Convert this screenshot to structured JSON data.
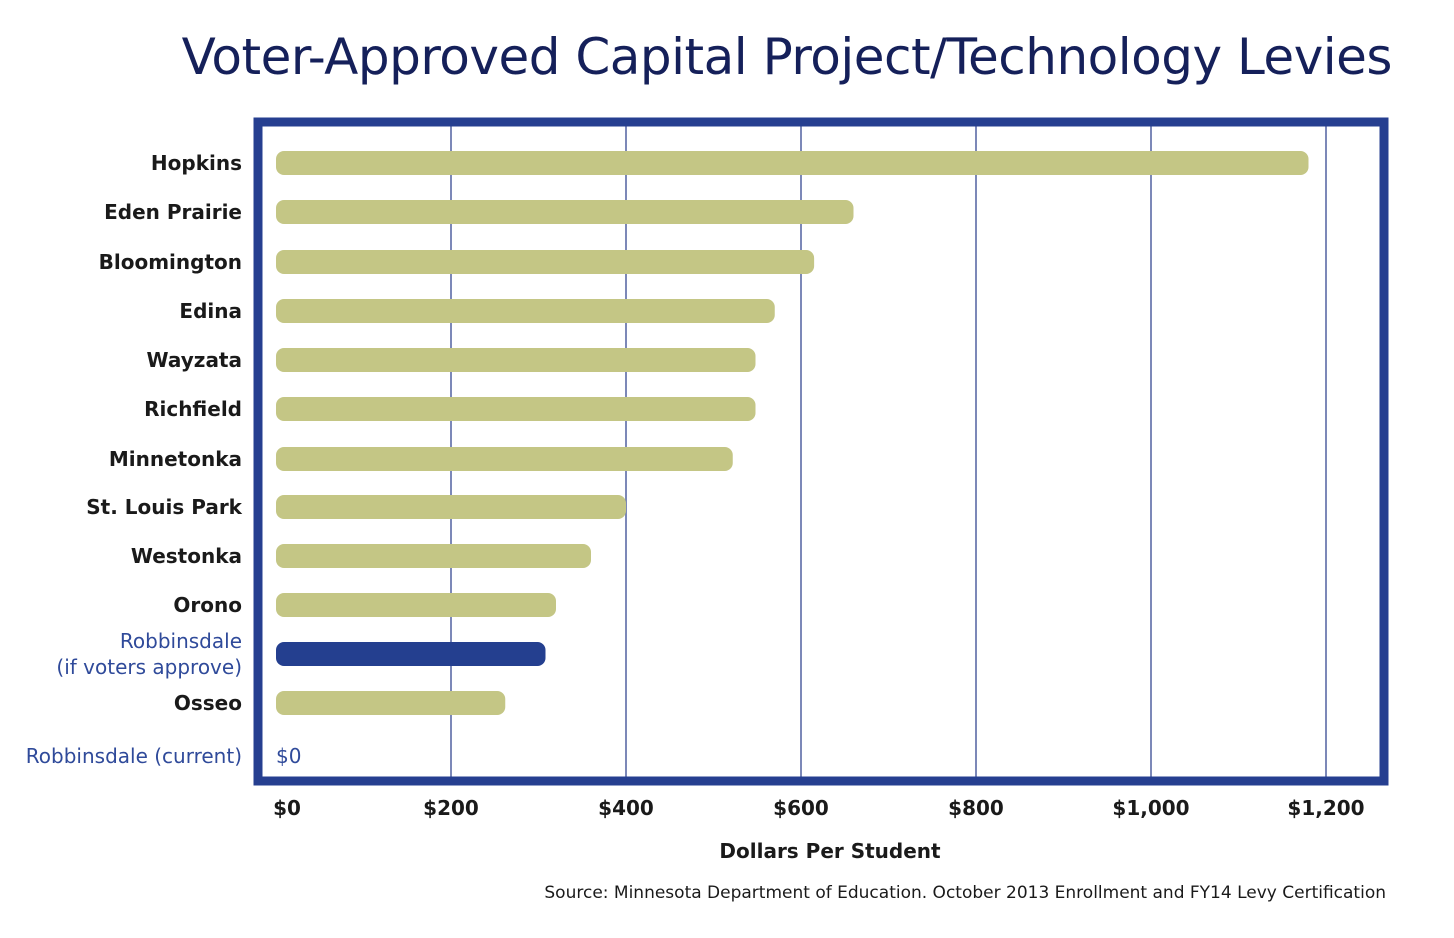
{
  "chart_data": {
    "type": "bar",
    "orientation": "horizontal",
    "title": "Voter-Approved Capital Project/Technology Levies",
    "xlabel": "Dollars Per Student",
    "ylabel": "",
    "xlim": [
      0,
      1300
    ],
    "x_ticks": [
      0,
      200,
      400,
      600,
      800,
      1000,
      1200
    ],
    "x_tick_labels": [
      "$0",
      "$200",
      "$400",
      "$600",
      "$800",
      "$1,000",
      "$1,200"
    ],
    "grid": true,
    "legend": "none",
    "categories": [
      "Hopkins",
      "Eden Prairie",
      "Bloomington",
      "Edina",
      "Wayzata",
      "Richfield",
      "Minnetonka",
      "St. Louis Park",
      "Westonka",
      "Orono",
      "Robbinsdale\n(if voters approve)",
      "Osseo",
      "Robbinsdale (current)"
    ],
    "values": [
      1180,
      660,
      615,
      570,
      548,
      548,
      522,
      400,
      360,
      320,
      308,
      262,
      0
    ],
    "highlight": [
      false,
      false,
      false,
      false,
      false,
      false,
      false,
      false,
      false,
      false,
      true,
      false,
      true
    ],
    "value_labels": {
      "12": "$0"
    },
    "source": "Source: Minnesota Department of Education. October 2013 Enrollment and FY14 Levy Certification",
    "colors": {
      "bar": "#c4c685",
      "highlight_bar": "#243f8f",
      "frame": "#263f90",
      "gridline": "#5b6aa6",
      "title": "#15205a",
      "highlight_text": "#2f4a9a"
    }
  }
}
